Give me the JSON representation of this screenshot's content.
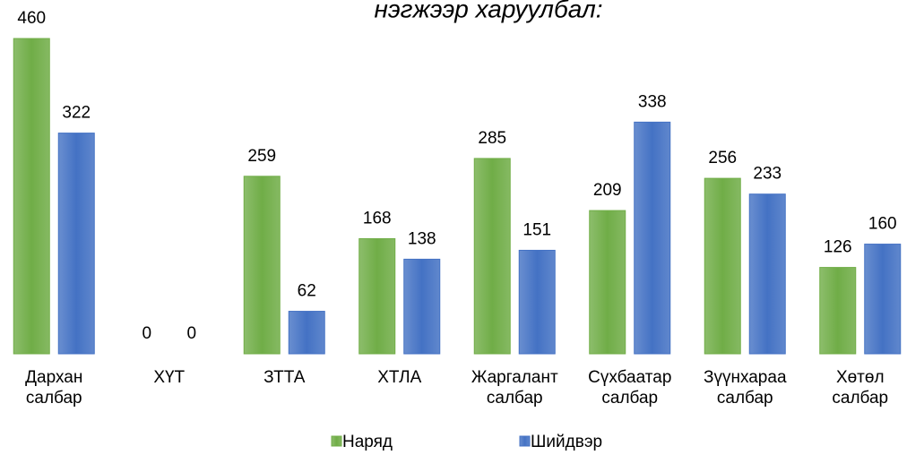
{
  "chart_data": {
    "type": "bar",
    "title": "нэгжээр харуулбал:",
    "categories": [
      "Дархан салбар",
      "ХҮТ",
      "ЗТТА",
      "ХТЛА",
      "Жаргалант салбар",
      "Сүхбаатар салбар",
      "Зүүнхараа салбар",
      "Хөтөл салбар"
    ],
    "series": [
      {
        "name": "Наряд",
        "color": "#70ad47",
        "values": [
          460,
          0,
          259,
          168,
          285,
          209,
          256,
          126
        ]
      },
      {
        "name": "Шийдвэр",
        "color": "#4472c4",
        "values": [
          322,
          0,
          62,
          138,
          151,
          338,
          233,
          160
        ]
      }
    ],
    "ylim": [
      0,
      460
    ],
    "legend": "bottom"
  }
}
